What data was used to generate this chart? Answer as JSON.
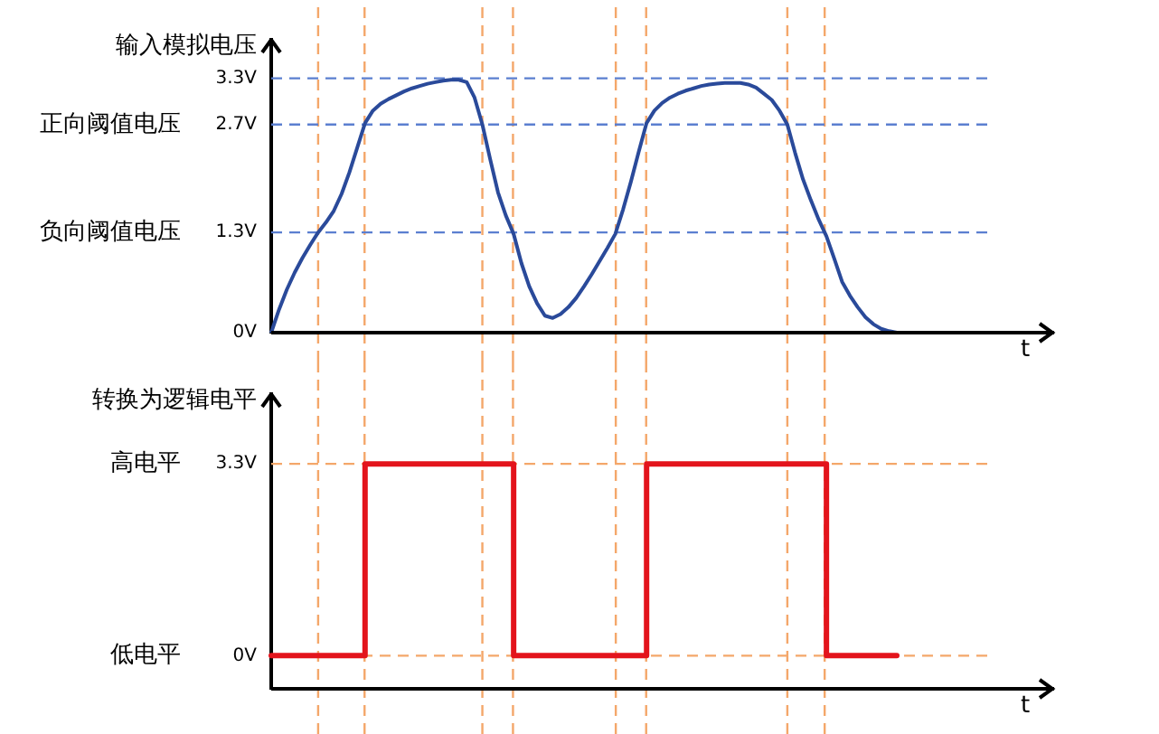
{
  "chart_data": [
    {
      "type": "line",
      "ylabel": "输入模拟电压",
      "xlabel": "t",
      "color": "#2a4a9a",
      "marker": "none",
      "line_style": "solid",
      "grid": "x",
      "tick_labels": "y",
      "categories": [
        null,
        null,
        null,
        null,
        null,
        null,
        null,
        null,
        null,
        null,
        null,
        null,
        null,
        null,
        null,
        null,
        null,
        null,
        null,
        null,
        null,
        null,
        null,
        null,
        null,
        null,
        null,
        null,
        null,
        null,
        null,
        null,
        null,
        null,
        null,
        null,
        null,
        null,
        null,
        null,
        null,
        null,
        null,
        null,
        null,
        null,
        null,
        null,
        null,
        null,
        null,
        null,
        null,
        null,
        null,
        null,
        null,
        null,
        null,
        null,
        null,
        null,
        null,
        null,
        null,
        null,
        null,
        null,
        null,
        null,
        null,
        null,
        null,
        null,
        null,
        null,
        null,
        null,
        null,
        null,
        null
      ],
      "values": [
        0,
        0.3,
        0.56,
        0.78,
        0.97,
        1.14,
        1.3,
        1.43,
        1.58,
        1.8,
        2.08,
        2.4,
        2.72,
        2.88,
        2.97,
        3.03,
        3.08,
        3.13,
        3.17,
        3.2,
        3.23,
        3.25,
        3.27,
        3.28,
        3.28,
        3.25,
        3.05,
        2.7,
        2.25,
        1.82,
        1.52,
        1.28,
        0.9,
        0.6,
        0.38,
        0.22,
        0.19,
        0.24,
        0.33,
        0.45,
        0.6,
        0.76,
        0.93,
        1.1,
        1.28,
        1.6,
        1.96,
        2.35,
        2.72,
        2.88,
        2.98,
        3.05,
        3.1,
        3.14,
        3.17,
        3.2,
        3.22,
        3.23,
        3.24,
        3.24,
        3.24,
        3.22,
        3.18,
        3.1,
        3.02,
        2.88,
        2.7,
        2.33,
        1.99,
        1.72,
        1.47,
        1.25,
        0.96,
        0.66,
        0.48,
        0.33,
        0.2,
        0.11,
        0.05,
        0.02,
        0
      ],
      "ylim": [
        0,
        3.8
      ],
      "yticks": [
        {
          "value": 0,
          "label": "0V"
        },
        {
          "value": 1.3,
          "label": "1.3V"
        },
        {
          "value": 2.7,
          "label": "2.7V"
        },
        {
          "value": 3.3,
          "label": "3.3V"
        }
      ],
      "ref_lines": [
        {
          "axis": "y",
          "value": 3.3,
          "color": "#5b7fd0",
          "line_style": "dashed"
        },
        {
          "axis": "y",
          "value": 2.7,
          "color": "#5b7fd0",
          "line_style": "dashed"
        },
        {
          "axis": "y",
          "value": 1.3,
          "color": "#5b7fd0",
          "line_style": "dashed"
        }
      ],
      "annotations": [
        "正向阈值电压",
        "负向阈值电压"
      ]
    },
    {
      "type": "step",
      "ylabel": "转换为逻辑电平",
      "xlabel": "t",
      "color": "#e3141c",
      "marker": "none",
      "line_style": "solid",
      "grid": "x",
      "tick_labels": "y",
      "categories": [
        null,
        null,
        null,
        null,
        null,
        null,
        null,
        null,
        null,
        null,
        null,
        null,
        null,
        null,
        null,
        null,
        null,
        null,
        null,
        null,
        null,
        null,
        null,
        null,
        null,
        null,
        null,
        null,
        null,
        null,
        null,
        null,
        null,
        null,
        null,
        null,
        null,
        null,
        null,
        null,
        null,
        null,
        null,
        null,
        null,
        null,
        null,
        null,
        null,
        null,
        null,
        null,
        null,
        null,
        null,
        null,
        null,
        null,
        null,
        null,
        null,
        null,
        null,
        null,
        null,
        null,
        null,
        null,
        null,
        null,
        null,
        null,
        null,
        null,
        null,
        null,
        null,
        null,
        null,
        null,
        null
      ],
      "values": [
        0,
        0,
        0,
        0,
        0,
        0,
        0,
        0,
        0,
        0,
        0,
        0,
        3.3,
        3.3,
        3.3,
        3.3,
        3.3,
        3.3,
        3.3,
        3.3,
        3.3,
        3.3,
        3.3,
        3.3,
        3.3,
        3.3,
        3.3,
        3.3,
        3.3,
        3.3,
        3.3,
        0,
        0,
        0,
        0,
        0,
        0,
        0,
        0,
        0,
        0,
        0,
        0,
        0,
        0,
        0,
        0,
        0,
        3.3,
        3.3,
        3.3,
        3.3,
        3.3,
        3.3,
        3.3,
        3.3,
        3.3,
        3.3,
        3.3,
        3.3,
        3.3,
        3.3,
        3.3,
        3.3,
        3.3,
        3.3,
        3.3,
        3.3,
        3.3,
        3.3,
        3.3,
        0,
        0,
        0,
        0,
        0,
        0,
        0,
        0,
        0,
        0
      ],
      "ylim": [
        -0.57,
        4.5
      ],
      "yticks": [
        {
          "value": 0,
          "label": "0V"
        },
        {
          "value": 3.3,
          "label": "3.3V"
        }
      ],
      "ref_lines": [
        {
          "axis": "y",
          "value": 3.3,
          "color": "#f4a76a",
          "line_style": "dashed"
        },
        {
          "axis": "y",
          "value": 0,
          "color": "#f4a76a",
          "line_style": "dashed"
        }
      ],
      "annotations": [
        "高电平",
        "低电平"
      ]
    }
  ]
}
